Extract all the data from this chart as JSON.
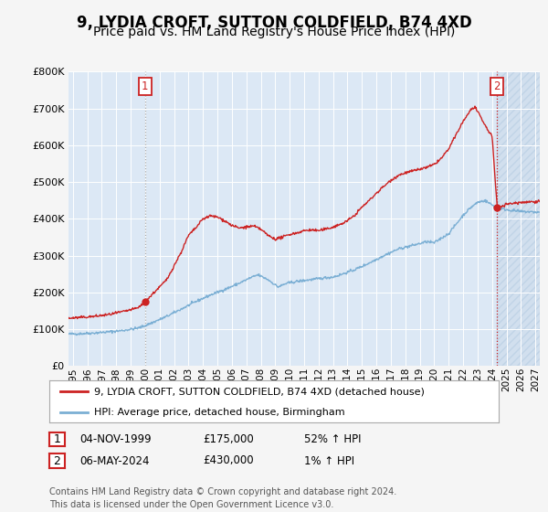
{
  "title": "9, LYDIA CROFT, SUTTON COLDFIELD, B74 4XD",
  "subtitle": "Price paid vs. HM Land Registry's House Price Index (HPI)",
  "ylabel_ticks": [
    "£0",
    "£100K",
    "£200K",
    "£300K",
    "£400K",
    "£500K",
    "£600K",
    "£700K",
    "£800K"
  ],
  "ytick_values": [
    0,
    100000,
    200000,
    300000,
    400000,
    500000,
    600000,
    700000,
    800000
  ],
  "ylim": [
    0,
    800000
  ],
  "xlim_start": 1994.7,
  "xlim_end": 2027.3,
  "xtick_years": [
    1995,
    1996,
    1997,
    1998,
    1999,
    2000,
    2001,
    2002,
    2003,
    2004,
    2005,
    2006,
    2007,
    2008,
    2009,
    2010,
    2011,
    2012,
    2013,
    2014,
    2015,
    2016,
    2017,
    2018,
    2019,
    2020,
    2021,
    2022,
    2023,
    2024,
    2025,
    2026,
    2027
  ],
  "hpi_color": "#7bafd4",
  "sale_color": "#cc2222",
  "background_color": "#f5f5f5",
  "plot_bg_color": "#dce8f5",
  "grid_color": "#ffffff",
  "hatch_color": "#c8d8e8",
  "marker1_x": 2000.0,
  "marker1_y": 175000,
  "marker2_x": 2024.35,
  "marker2_y": 430000,
  "vline1_color": "#aaaaaa",
  "vline2_color": "#cc2222",
  "legend_label_sale": "9, LYDIA CROFT, SUTTON COLDFIELD, B74 4XD (detached house)",
  "legend_label_hpi": "HPI: Average price, detached house, Birmingham",
  "table_rows": [
    {
      "num": "1",
      "date": "04-NOV-1999",
      "price": "£175,000",
      "change": "52% ↑ HPI"
    },
    {
      "num": "2",
      "date": "06-MAY-2024",
      "price": "£430,000",
      "change": "1% ↑ HPI"
    }
  ],
  "footnote": "Contains HM Land Registry data © Crown copyright and database right 2024.\nThis data is licensed under the Open Government Licence v3.0.",
  "title_fontsize": 12,
  "subtitle_fontsize": 10,
  "hpi_anchors": [
    [
      1994.7,
      87000
    ],
    [
      1995.5,
      88000
    ],
    [
      1996.5,
      90000
    ],
    [
      1997.5,
      93000
    ],
    [
      1998.5,
      97000
    ],
    [
      1999.5,
      103000
    ],
    [
      2000.0,
      110000
    ],
    [
      2000.5,
      118000
    ],
    [
      2001.5,
      135000
    ],
    [
      2002.5,
      155000
    ],
    [
      2003.5,
      175000
    ],
    [
      2004.5,
      193000
    ],
    [
      2005.5,
      208000
    ],
    [
      2006.5,
      225000
    ],
    [
      2007.3,
      240000
    ],
    [
      2007.8,
      248000
    ],
    [
      2008.5,
      235000
    ],
    [
      2009.2,
      215000
    ],
    [
      2009.8,
      225000
    ],
    [
      2010.5,
      230000
    ],
    [
      2011.5,
      235000
    ],
    [
      2012.5,
      240000
    ],
    [
      2013.0,
      242000
    ],
    [
      2013.5,
      248000
    ],
    [
      2014.5,
      262000
    ],
    [
      2015.5,
      280000
    ],
    [
      2016.5,
      300000
    ],
    [
      2017.5,
      318000
    ],
    [
      2018.5,
      328000
    ],
    [
      2019.5,
      338000
    ],
    [
      2020.0,
      335000
    ],
    [
      2020.5,
      348000
    ],
    [
      2021.0,
      360000
    ],
    [
      2021.5,
      385000
    ],
    [
      2022.0,
      410000
    ],
    [
      2022.5,
      430000
    ],
    [
      2023.0,
      445000
    ],
    [
      2023.5,
      450000
    ],
    [
      2024.35,
      430000
    ],
    [
      2025.0,
      425000
    ],
    [
      2026.0,
      420000
    ],
    [
      2027.3,
      418000
    ]
  ],
  "sale_anchors": [
    [
      1994.7,
      130000
    ],
    [
      1995.5,
      132000
    ],
    [
      1996.5,
      135000
    ],
    [
      1997.5,
      140000
    ],
    [
      1998.5,
      148000
    ],
    [
      1999.5,
      158000
    ],
    [
      2000.0,
      175000
    ],
    [
      2000.5,
      195000
    ],
    [
      2001.5,
      235000
    ],
    [
      2002.5,
      310000
    ],
    [
      2003.0,
      355000
    ],
    [
      2003.5,
      375000
    ],
    [
      2004.0,
      400000
    ],
    [
      2004.5,
      408000
    ],
    [
      2005.0,
      405000
    ],
    [
      2005.5,
      395000
    ],
    [
      2006.0,
      382000
    ],
    [
      2006.5,
      375000
    ],
    [
      2007.0,
      378000
    ],
    [
      2007.5,
      380000
    ],
    [
      2008.0,
      372000
    ],
    [
      2008.5,
      355000
    ],
    [
      2009.0,
      345000
    ],
    [
      2009.5,
      350000
    ],
    [
      2010.0,
      358000
    ],
    [
      2010.5,
      362000
    ],
    [
      2011.0,
      368000
    ],
    [
      2011.5,
      370000
    ],
    [
      2012.0,
      368000
    ],
    [
      2012.5,
      372000
    ],
    [
      2013.0,
      378000
    ],
    [
      2013.5,
      385000
    ],
    [
      2014.0,
      395000
    ],
    [
      2014.5,
      410000
    ],
    [
      2015.0,
      432000
    ],
    [
      2015.5,
      450000
    ],
    [
      2016.0,
      470000
    ],
    [
      2016.5,
      488000
    ],
    [
      2017.0,
      505000
    ],
    [
      2017.5,
      518000
    ],
    [
      2018.0,
      525000
    ],
    [
      2018.5,
      530000
    ],
    [
      2019.0,
      535000
    ],
    [
      2019.5,
      540000
    ],
    [
      2020.0,
      548000
    ],
    [
      2020.5,
      565000
    ],
    [
      2021.0,
      590000
    ],
    [
      2021.5,
      628000
    ],
    [
      2022.0,
      665000
    ],
    [
      2022.5,
      695000
    ],
    [
      2022.8,
      705000
    ],
    [
      2023.0,
      690000
    ],
    [
      2023.3,
      670000
    ],
    [
      2023.6,
      648000
    ],
    [
      2024.0,
      625000
    ],
    [
      2024.35,
      430000
    ],
    [
      2025.0,
      440000
    ],
    [
      2026.0,
      445000
    ],
    [
      2027.3,
      448000
    ]
  ]
}
